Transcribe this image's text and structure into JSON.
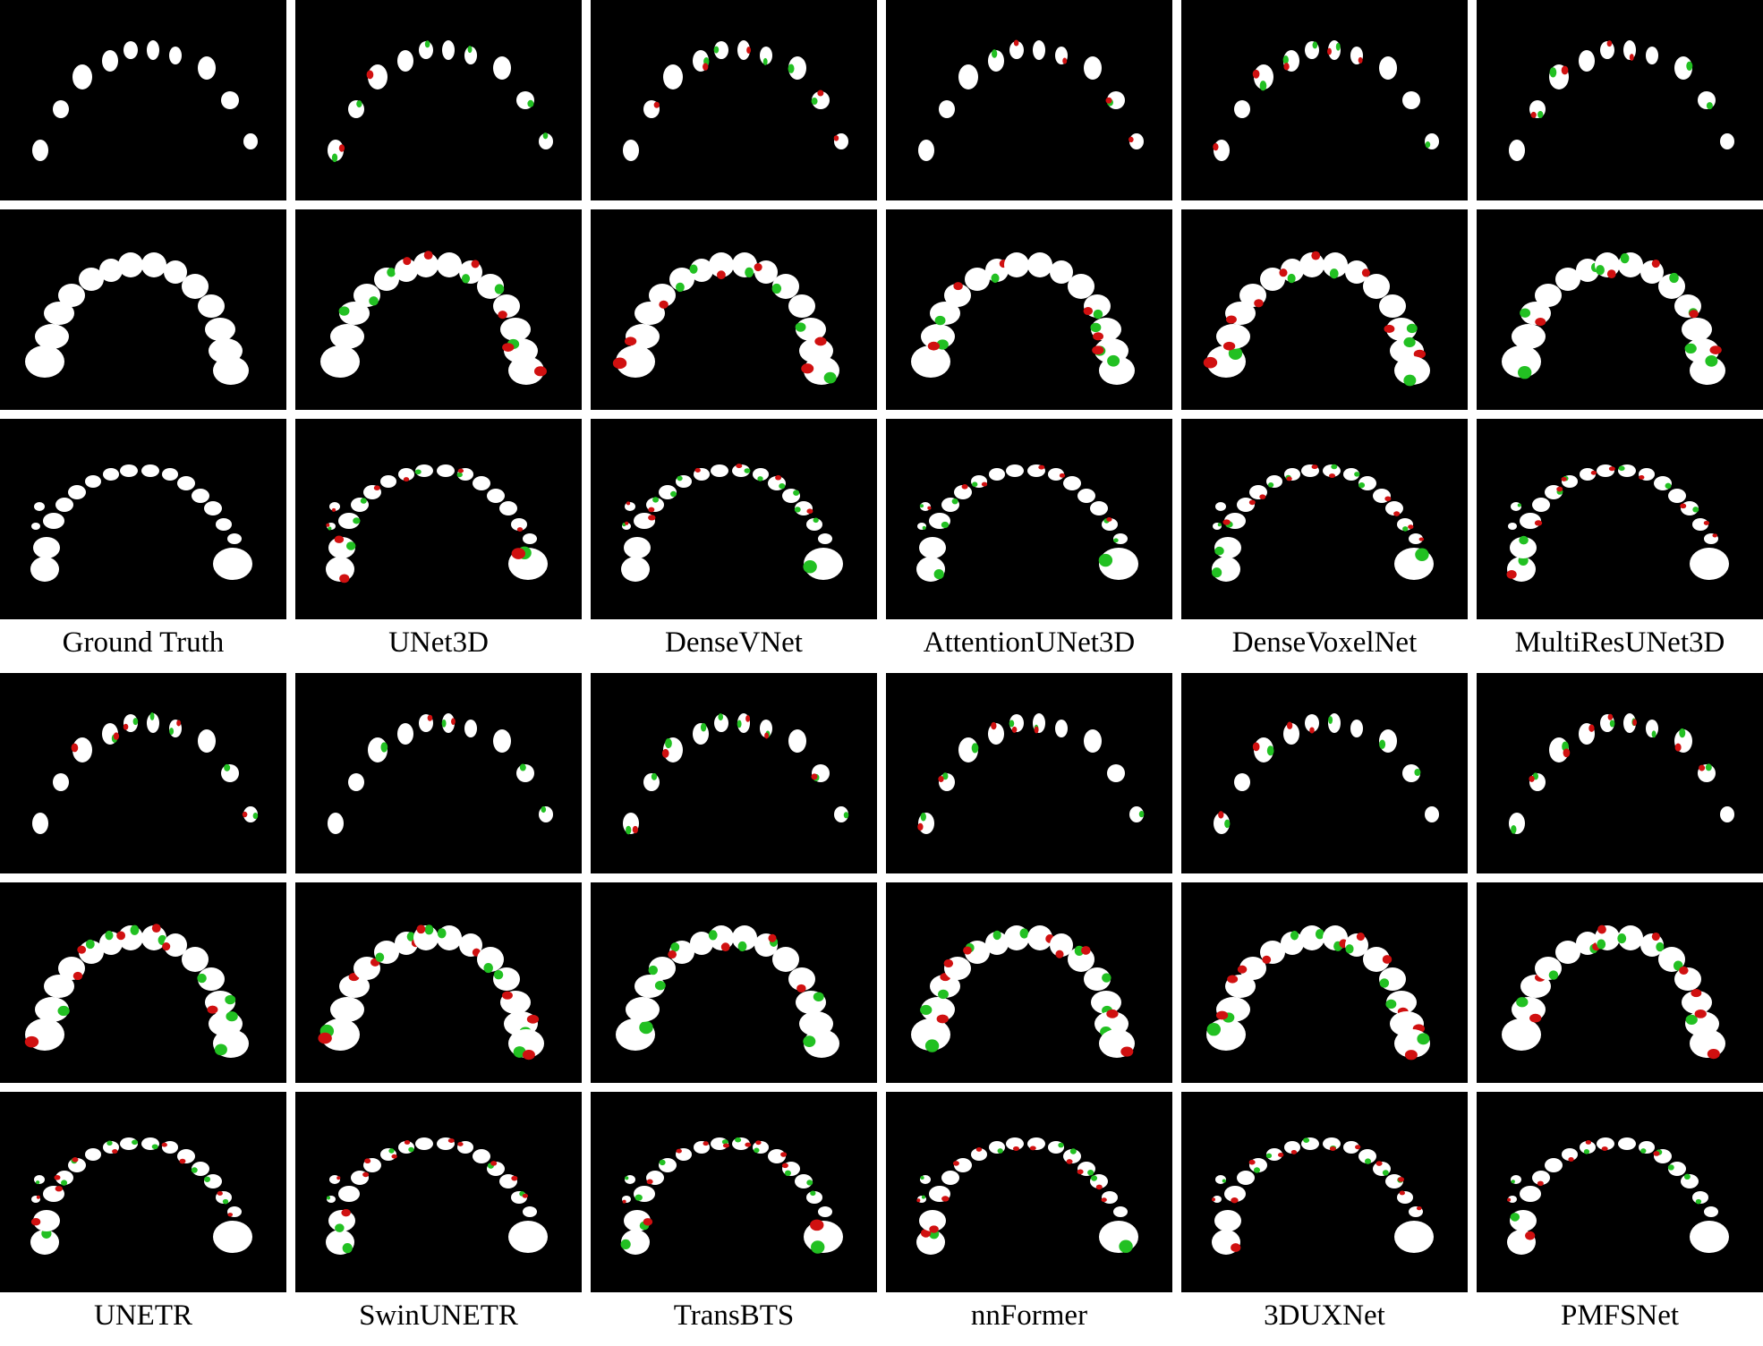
{
  "figure": {
    "labels_top": [
      "Ground Truth",
      "UNet3D",
      "DenseVNet",
      "AttentionUNet3D",
      "DenseVoxelNet",
      "MultiResUNet3D"
    ],
    "labels_bottom": [
      "UNETR",
      "SwinUNETR",
      "TransBTS",
      "nnFormer",
      "3DUXNet",
      "PMFSNet"
    ],
    "row_kinds": [
      "sparse",
      "dense",
      "arch-with-molars"
    ],
    "colors": {
      "background": "#000000",
      "tooth": "#ffffff",
      "false_positive": "#d01010",
      "false_negative": "#22c022",
      "separator": "#ffffff"
    }
  }
}
